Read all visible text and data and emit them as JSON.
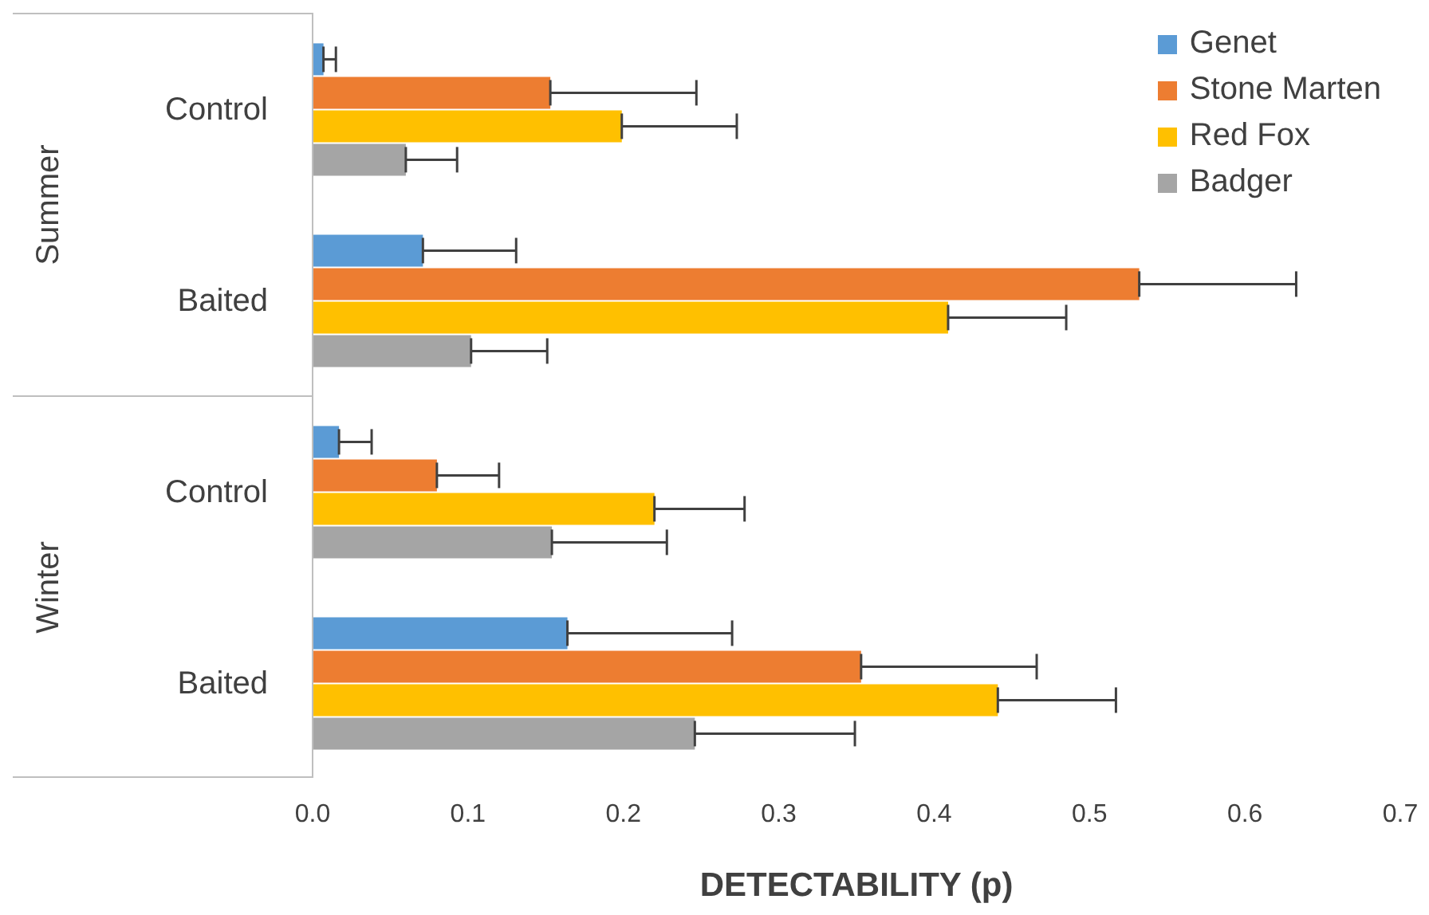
{
  "chart_data": {
    "type": "bar",
    "orientation": "horizontal",
    "xlabel": "DETECTABILITY (p)",
    "categories": [
      "Control",
      "Baited",
      "Control",
      "Baited"
    ],
    "annotations": [
      "Summer",
      "Winter"
    ],
    "series": [
      {
        "name": "Genet",
        "color": "#5b9bd5",
        "values": [
          0.007,
          0.071,
          0.017,
          0.164
        ],
        "errors": [
          [
            0.007,
            0.015
          ],
          [
            0.071,
            0.131
          ],
          [
            0.017,
            0.038
          ],
          [
            0.164,
            0.27
          ]
        ]
      },
      {
        "name": "Stone Marten",
        "color": "#ed7d31",
        "values": [
          0.153,
          0.532,
          0.08,
          0.353
        ],
        "errors": [
          [
            0.153,
            0.247
          ],
          [
            0.532,
            0.633
          ],
          [
            0.08,
            0.12
          ],
          [
            0.353,
            0.466
          ]
        ]
      },
      {
        "name": "Red Fox",
        "color": "#ffc000",
        "values": [
          0.199,
          0.409,
          0.22,
          0.441
        ],
        "errors": [
          [
            0.199,
            0.273
          ],
          [
            0.409,
            0.485
          ],
          [
            0.22,
            0.278
          ],
          [
            0.441,
            0.517
          ]
        ]
      },
      {
        "name": "Badger",
        "color": "#a5a5a5",
        "values": [
          0.06,
          0.102,
          0.154,
          0.246
        ],
        "errors": [
          [
            0.06,
            0.093
          ],
          [
            0.102,
            0.151
          ],
          [
            0.154,
            0.228
          ],
          [
            0.246,
            0.349
          ]
        ]
      }
    ],
    "xlim": [
      0,
      0.7
    ],
    "xticks": [
      {
        "value": 0,
        "label": "0.0"
      },
      0.1,
      0.2,
      0.3,
      0.4,
      0.5,
      0.6,
      0.7
    ],
    "grid": false,
    "legend": "top right"
  }
}
